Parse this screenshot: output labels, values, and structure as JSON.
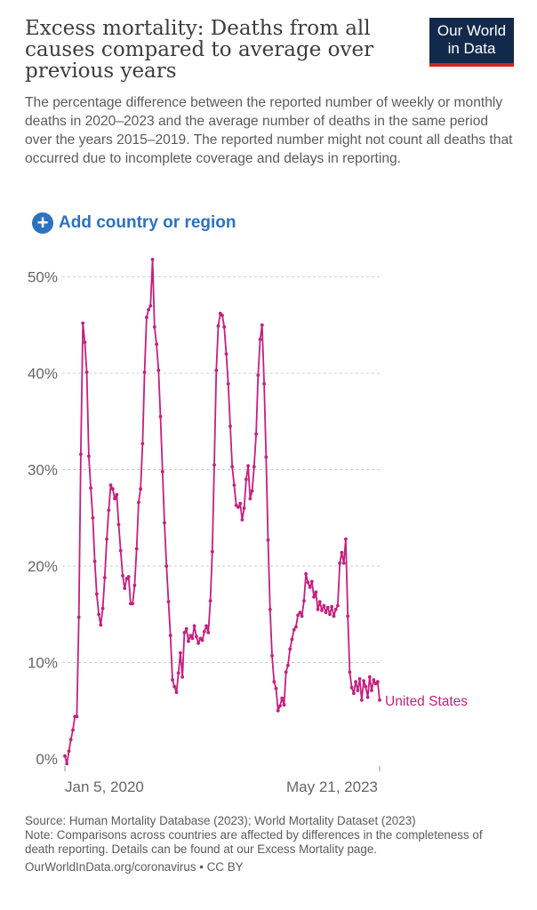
{
  "header": {
    "title": "Excess mortality: Deaths from all causes compared to average over previous years",
    "subtitle": "The percentage difference between the reported number of weekly or monthly deaths in 2020–2023 and the average number of deaths in the same period over the years 2015–2019. The reported number might not count all deaths that occurred due to incomplete coverage and delays in reporting.",
    "logo_line1": "Our World",
    "logo_line2": "in Data"
  },
  "controls": {
    "add_label": "Add country or region",
    "add_icon": "plus-circle-icon"
  },
  "chart_data": {
    "type": "line",
    "title": "Excess mortality: Deaths from all causes compared to average over previous years",
    "xlabel": "",
    "ylabel": "",
    "ylim": [
      0,
      52
    ],
    "y_ticks": [
      0,
      10,
      20,
      30,
      40,
      50
    ],
    "y_tick_labels": [
      "0%",
      "10%",
      "20%",
      "30%",
      "40%",
      "50%"
    ],
    "x_tick_labels": [
      "Jan 5, 2020",
      "May 21, 2023"
    ],
    "grid": true,
    "legend": "end-of-line label",
    "series": [
      {
        "name": "United States",
        "color": "#c51f7e",
        "values": [
          0.3,
          -0.5,
          0.8,
          2.0,
          3.0,
          4.4,
          4.4,
          14.7,
          31.6,
          45.2,
          43.2,
          40.1,
          31.4,
          28.1,
          25.0,
          20.5,
          17.1,
          15.0,
          13.9,
          15.6,
          18.8,
          22.8,
          25.8,
          28.4,
          28.0,
          27.0,
          27.4,
          24.3,
          21.6,
          19.0,
          17.7,
          18.7,
          18.9,
          16.1,
          16.1,
          18.0,
          21.8,
          26.6,
          28.0,
          32.7,
          40.1,
          45.8,
          46.6,
          47.0,
          51.8,
          44.8,
          43.0,
          40.3,
          35.5,
          29.8,
          24.5,
          20.0,
          16.3,
          12.8,
          8.2,
          7.5,
          6.9,
          8.9,
          11.0,
          8.5,
          13.1,
          13.5,
          12.2,
          12.8,
          12.5,
          13.8,
          12.7,
          12.0,
          12.5,
          12.3,
          13.2,
          13.8,
          13.1,
          16.4,
          21.5,
          30.5,
          40.3,
          44.9,
          46.2,
          46.0,
          44.8,
          42.0,
          38.9,
          34.5,
          30.3,
          28.4,
          26.3,
          26.1,
          26.5,
          24.8,
          26.0,
          29.0,
          30.4,
          27.0,
          27.8,
          30.3,
          33.7,
          39.8,
          43.5,
          45.0,
          38.9,
          31.3,
          22.7,
          15.5,
          10.7,
          8.0,
          7.3,
          5.0,
          5.5,
          6.3,
          5.6,
          9.0,
          9.7,
          11.4,
          12.4,
          13.4,
          13.7,
          14.9,
          15.2,
          14.8,
          16.4,
          19.2,
          18.3,
          17.8,
          18.4,
          16.8,
          17.3,
          15.5,
          16.3,
          15.4,
          15.9,
          15.2,
          15.7,
          15.0,
          15.8,
          14.8,
          15.5,
          15.9,
          20.3,
          21.4,
          20.3,
          22.8,
          14.8,
          9.0,
          7.4,
          6.8,
          8.0,
          7.1,
          8.3,
          6.1,
          8.1,
          7.5,
          6.4,
          8.5,
          7.1,
          8.2,
          7.8,
          8.0,
          6.1
        ]
      }
    ]
  },
  "footer": {
    "source": "Source: Human Mortality Database (2023); World Mortality Dataset (2023)",
    "note": "Note: Comparisons across countries are affected by differences in the completeness of death reporting. Details can be found at our Excess Mortality page.",
    "url": "OurWorldInData.org/coronavirus • CC BY"
  }
}
